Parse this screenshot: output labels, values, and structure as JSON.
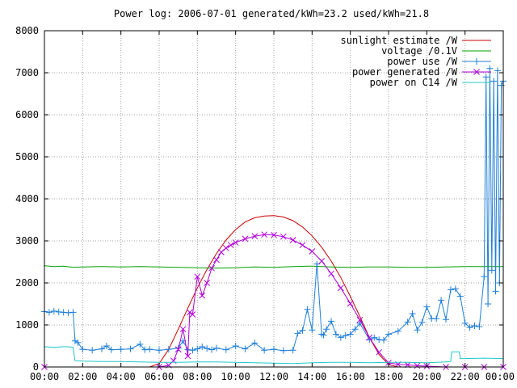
{
  "chart_data": {
    "type": "line",
    "title": "Power log: 2006-07-01 generated/kWh=23.2 used/kWh=21.8",
    "xlabel": "",
    "ylabel": "",
    "x_unit": "hours of day",
    "xlim": [
      0,
      24
    ],
    "ylim": [
      0,
      8000
    ],
    "x_tick_labels": [
      "00:00",
      "02:00",
      "04:00",
      "06:00",
      "08:00",
      "10:00",
      "12:00",
      "14:00",
      "16:00",
      "18:00",
      "20:00",
      "22:00",
      "00:00"
    ],
    "y_tick_labels": [
      "0",
      "1000",
      "2000",
      "3000",
      "4000",
      "5000",
      "6000",
      "7000",
      "8000"
    ],
    "grid": true,
    "legend_position": "top-right",
    "series": [
      {
        "name": "sunlight estimate /W",
        "color": "#cc0000",
        "style": "line",
        "x": [
          0,
          5.5,
          6.0,
          6.5,
          7.0,
          7.5,
          8.0,
          8.5,
          9.0,
          9.5,
          10.0,
          10.5,
          11.0,
          11.5,
          12.0,
          12.5,
          13.0,
          13.5,
          14.0,
          14.5,
          15.0,
          15.5,
          16.0,
          16.5,
          17.0,
          17.5,
          18.0,
          18.5,
          24
        ],
        "y": [
          0,
          0,
          80,
          420,
          900,
          1400,
          1880,
          2320,
          2700,
          3020,
          3270,
          3450,
          3550,
          3590,
          3600,
          3570,
          3480,
          3330,
          3120,
          2850,
          2520,
          2130,
          1680,
          1200,
          700,
          300,
          60,
          0,
          0
        ]
      },
      {
        "name": "voltage /0.1V",
        "color": "#00a000",
        "style": "line",
        "x": [
          0,
          0.5,
          1.0,
          1.5,
          2.0,
          3.0,
          4.0,
          5.0,
          6.0,
          7.0,
          8.0,
          9.0,
          10.0,
          11.0,
          12.0,
          13.0,
          14.0,
          15.0,
          16.0,
          17.0,
          18.0,
          19.0,
          20.0,
          21.0,
          22.0,
          23.0,
          24.0
        ],
        "y": [
          2410,
          2390,
          2400,
          2370,
          2380,
          2390,
          2380,
          2390,
          2380,
          2370,
          2360,
          2350,
          2360,
          2380,
          2370,
          2390,
          2400,
          2380,
          2370,
          2380,
          2380,
          2370,
          2370,
          2380,
          2390,
          2390,
          2390
        ]
      },
      {
        "name": "power use /W",
        "color": "#1f7fd8",
        "style": "linespoints",
        "marker": "plus",
        "x": [
          0,
          0.25,
          0.5,
          0.75,
          1.0,
          1.25,
          1.5,
          1.6,
          1.75,
          2.0,
          2.5,
          3.0,
          3.25,
          3.5,
          4.0,
          4.5,
          5.0,
          5.25,
          5.5,
          6.0,
          6.5,
          7.0,
          7.25,
          7.5,
          7.75,
          8.0,
          8.25,
          8.5,
          8.75,
          9.0,
          9.5,
          10.0,
          10.5,
          11.0,
          11.5,
          12.0,
          12.5,
          13.0,
          13.25,
          13.5,
          13.75,
          14.0,
          14.25,
          14.5,
          14.6,
          14.75,
          15.0,
          15.25,
          15.5,
          15.75,
          16.0,
          16.25,
          16.5,
          17.0,
          17.25,
          17.5,
          17.75,
          18.0,
          18.5,
          19.0,
          19.25,
          19.5,
          19.75,
          20.0,
          20.25,
          20.5,
          20.75,
          21.0,
          21.25,
          21.5,
          21.75,
          22.0,
          22.25,
          22.5,
          22.75,
          23.0,
          23.1,
          23.2,
          23.3,
          23.4,
          23.5,
          23.6,
          23.7,
          23.8,
          23.9,
          24.0
        ],
        "y": [
          1320,
          1300,
          1330,
          1310,
          1300,
          1290,
          1300,
          620,
          580,
          420,
          400,
          430,
          500,
          410,
          420,
          430,
          540,
          410,
          420,
          400,
          420,
          450,
          620,
          410,
          400,
          430,
          480,
          440,
          410,
          450,
          410,
          500,
          430,
          570,
          400,
          420,
          390,
          400,
          800,
          870,
          1370,
          880,
          2450,
          780,
          760,
          900,
          1090,
          780,
          700,
          750,
          780,
          900,
          1040,
          650,
          700,
          650,
          640,
          780,
          850,
          1070,
          1270,
          880,
          1060,
          1430,
          1150,
          1150,
          1590,
          1130,
          1840,
          1860,
          1680,
          1040,
          940,
          980,
          960,
          2150,
          6900,
          1500,
          7100,
          2300,
          6800,
          1800,
          7050,
          2000,
          6700,
          6800
        ]
      },
      {
        "name": "power generated /W",
        "color": "#b000d8",
        "style": "linespoints",
        "marker": "cross",
        "x": [
          0,
          6.0,
          6.5,
          6.75,
          7.0,
          7.25,
          7.5,
          7.6,
          7.75,
          8.0,
          8.25,
          8.5,
          8.75,
          9.0,
          9.25,
          9.5,
          9.75,
          10.0,
          10.5,
          11.0,
          11.5,
          12.0,
          12.5,
          13.0,
          13.5,
          14.0,
          14.5,
          15.0,
          15.5,
          16.0,
          16.5,
          17.0,
          17.5,
          18.0,
          18.5,
          19.0,
          19.5,
          20.0,
          21.0,
          22.0,
          23.0,
          24.0
        ],
        "y": [
          0,
          0,
          40,
          150,
          420,
          900,
          260,
          1300,
          1250,
          2150,
          1700,
          2000,
          2350,
          2550,
          2730,
          2830,
          2900,
          2960,
          3050,
          3110,
          3150,
          3140,
          3100,
          3020,
          2900,
          2750,
          2520,
          2220,
          1880,
          1510,
          1120,
          700,
          350,
          100,
          60,
          50,
          30,
          20,
          0,
          0,
          0,
          0
        ]
      },
      {
        "name": "power on C14 /W",
        "color": "#22c8c8",
        "style": "line",
        "x": [
          0,
          0.5,
          1.0,
          1.25,
          1.5,
          1.6,
          2.0,
          3.0,
          4.0,
          5.0,
          6.0,
          7.0,
          8.0,
          9.0,
          10.0,
          11.0,
          12.0,
          13.0,
          14.0,
          15.0,
          16.0,
          17.0,
          18.0,
          19.0,
          20.0,
          20.5,
          21.0,
          21.25,
          21.3,
          21.7,
          21.75,
          22.0,
          23.0,
          24.0
        ],
        "y": [
          480,
          470,
          480,
          480,
          470,
          150,
          140,
          130,
          130,
          120,
          110,
          110,
          120,
          120,
          110,
          100,
          90,
          80,
          100,
          110,
          110,
          100,
          110,
          110,
          100,
          110,
          120,
          130,
          360,
          360,
          200,
          200,
          210,
          200
        ]
      }
    ]
  }
}
